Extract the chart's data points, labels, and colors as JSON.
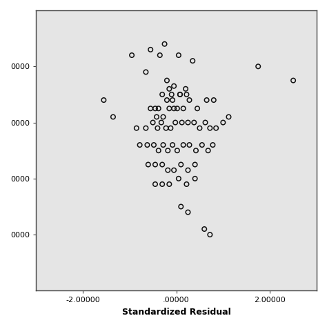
{
  "title": "",
  "xlabel": "Standardized Residual",
  "ylabel": "",
  "xlim": [
    -3.0,
    3.0
  ],
  "ylim": [
    0.0,
    1.0
  ],
  "xticks": [
    -2.0,
    0.0,
    2.0
  ],
  "xtick_labels": [
    "-2.00000",
    ".00000",
    "2.00000"
  ],
  "ytick_positions": [
    0.2,
    0.4,
    0.6,
    0.8
  ],
  "ytick_labels": [
    "0000",
    "0000",
    "0000",
    "0000"
  ],
  "background_color": "#e5e5e5",
  "fig_color": "#ffffff",
  "scatter_facecolor": "none",
  "scatter_edgecolor": "#111111",
  "marker_size": 22,
  "linewidth": 1.1,
  "points_x": [
    -0.95,
    -0.65,
    -0.55,
    -0.35,
    -0.25,
    0.05,
    0.35,
    -0.2,
    -0.15,
    -0.05,
    0.08,
    0.2,
    -0.3,
    -0.2,
    -0.1,
    -0.08,
    0.08,
    0.22,
    -0.55,
    -0.45,
    -0.42,
    -0.38,
    -0.28,
    -0.15,
    -0.05,
    0.02,
    0.15,
    0.28,
    0.45,
    0.65,
    0.8,
    -0.85,
    -0.65,
    -0.5,
    -0.4,
    -0.32,
    -0.22,
    -0.12,
    -0.02,
    0.12,
    0.25,
    0.38,
    0.5,
    0.62,
    0.72,
    0.85,
    1.0,
    1.12,
    -0.78,
    -0.62,
    -0.48,
    -0.38,
    -0.28,
    -0.18,
    -0.08,
    0.02,
    0.15,
    0.28,
    0.42,
    0.55,
    0.68,
    0.78,
    -0.6,
    -0.45,
    -0.3,
    -0.18,
    -0.05,
    0.1,
    0.25,
    0.4,
    -0.45,
    -0.3,
    -0.15,
    0.05,
    0.22,
    0.4,
    0.1,
    0.25,
    0.6,
    0.72,
    1.75,
    2.5,
    -1.55,
    -1.35
  ],
  "points_y": [
    0.84,
    0.78,
    0.86,
    0.84,
    0.88,
    0.84,
    0.82,
    0.75,
    0.72,
    0.73,
    0.7,
    0.72,
    0.7,
    0.68,
    0.7,
    0.68,
    0.7,
    0.7,
    0.65,
    0.65,
    0.62,
    0.65,
    0.62,
    0.65,
    0.65,
    0.65,
    0.65,
    0.68,
    0.65,
    0.68,
    0.68,
    0.58,
    0.58,
    0.6,
    0.58,
    0.6,
    0.58,
    0.58,
    0.6,
    0.6,
    0.6,
    0.6,
    0.58,
    0.6,
    0.58,
    0.58,
    0.6,
    0.62,
    0.52,
    0.52,
    0.52,
    0.5,
    0.52,
    0.5,
    0.52,
    0.5,
    0.52,
    0.52,
    0.5,
    0.52,
    0.5,
    0.52,
    0.45,
    0.45,
    0.45,
    0.43,
    0.43,
    0.45,
    0.43,
    0.45,
    0.38,
    0.38,
    0.38,
    0.4,
    0.38,
    0.4,
    0.3,
    0.28,
    0.22,
    0.2,
    0.8,
    0.75,
    0.68,
    0.62
  ]
}
